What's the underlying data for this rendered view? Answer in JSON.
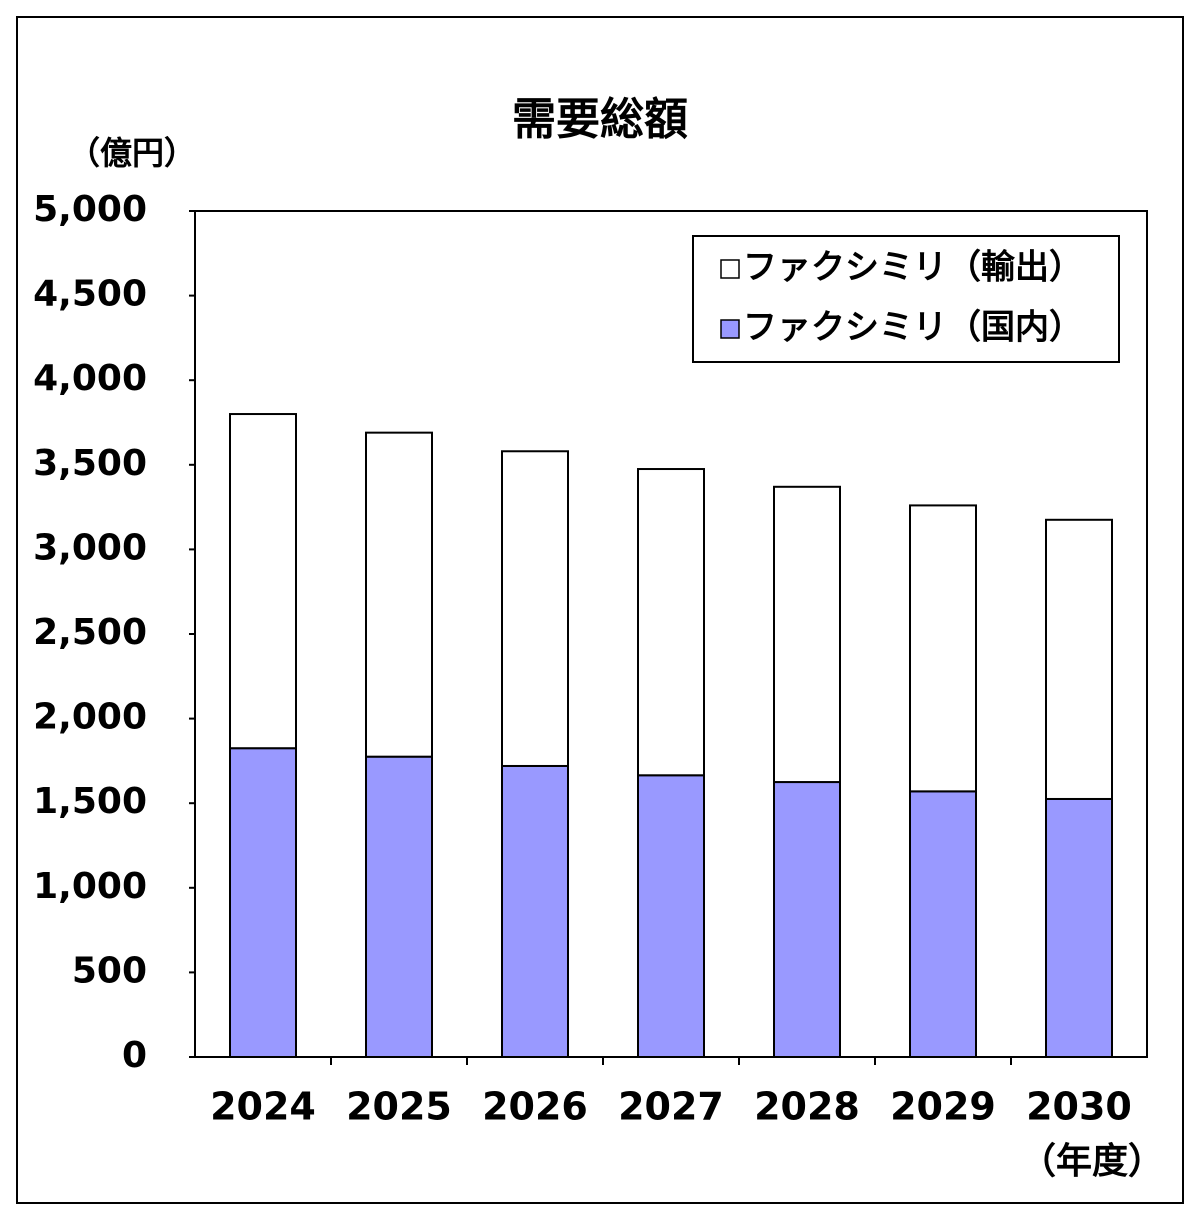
{
  "chart_data": {
    "type": "stacked_bar",
    "title": "需要総額",
    "y_unit_label": "（億円）",
    "x_unit_label": "（年度）",
    "categories": [
      "2024",
      "2025",
      "2026",
      "2027",
      "2028",
      "2029",
      "2030"
    ],
    "series": [
      {
        "name": "ファクシミリ（国内）",
        "color": "#9999ff",
        "values": [
          1825,
          1775,
          1720,
          1665,
          1625,
          1570,
          1525
        ]
      },
      {
        "name": "ファクシミリ（輸出）",
        "color": "#ffffff",
        "values": [
          1975,
          1915,
          1860,
          1810,
          1745,
          1690,
          1650
        ]
      }
    ],
    "ylim": [
      0,
      5000
    ],
    "yticks": [
      0,
      500,
      {
        "value": 1000,
        "label": "1,000"
      },
      {
        "value": 1500,
        "label": "1,500"
      },
      {
        "value": 2000,
        "label": "2,000"
      },
      {
        "value": 2500,
        "label": "2,500"
      },
      {
        "value": 3000,
        "label": "3,000"
      },
      {
        "value": 3500,
        "label": "3,500"
      },
      {
        "value": 4000,
        "label": "4,000"
      },
      {
        "value": 4500,
        "label": "4,500"
      },
      {
        "value": 5000,
        "label": "5,000"
      }
    ],
    "legend": "upper right",
    "grid": false
  }
}
